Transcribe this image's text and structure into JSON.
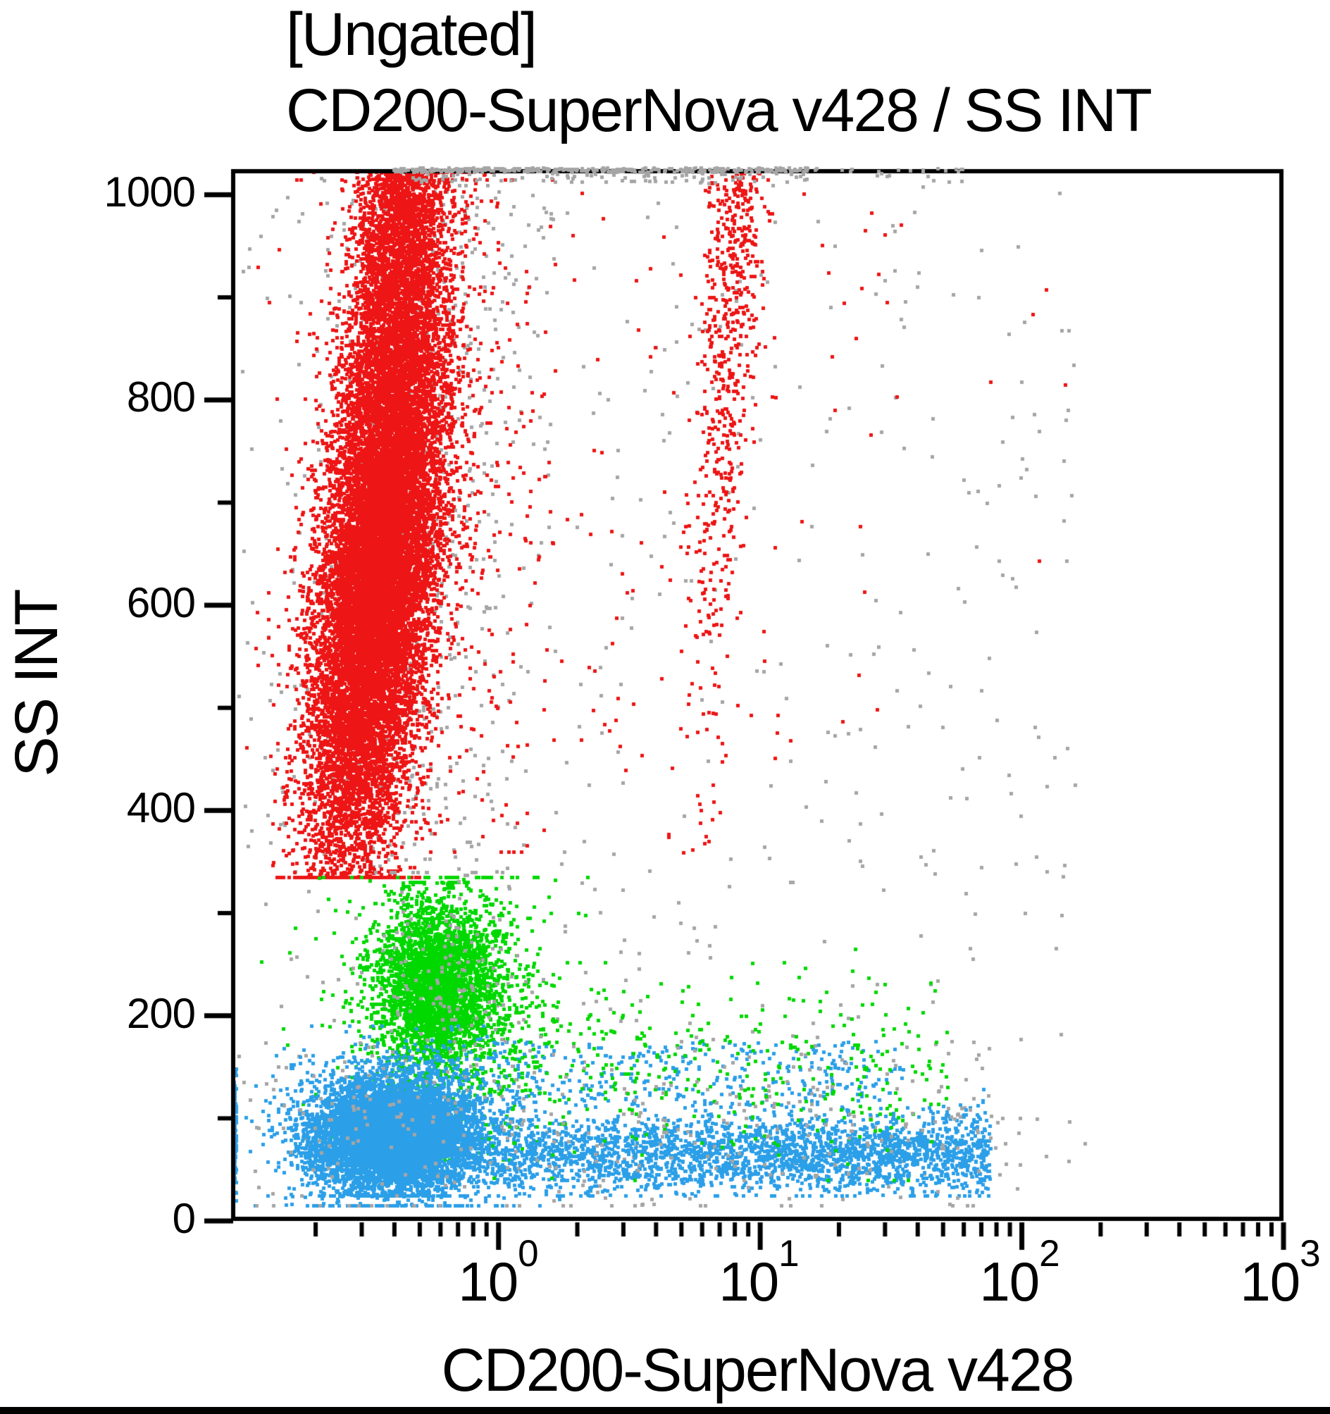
{
  "chart_data": {
    "type": "scatter",
    "plot_kind": "flow-cytometry-dot-plot",
    "gate": "[Ungated]",
    "title": "CD200-SuperNova v428 / SS INT",
    "xlabel": "CD200-SuperNova v428",
    "ylabel": "SS INT",
    "grid": false,
    "legend": "none",
    "x_axis": {
      "scale": "log10",
      "min": 0.095,
      "max": 1000,
      "decade_labels": [
        {
          "base": "10",
          "exp": "0",
          "value": 1
        },
        {
          "base": "10",
          "exp": "1",
          "value": 10
        },
        {
          "base": "10",
          "exp": "2",
          "value": 100
        },
        {
          "base": "10",
          "exp": "3",
          "value": 1000
        }
      ],
      "minor_ticks": "2-9 of each decade"
    },
    "y_axis": {
      "scale": "linear",
      "min": 0,
      "max": 1025,
      "tick_labels": [
        "1000",
        "800",
        "600",
        "400",
        "200",
        "0"
      ],
      "major_tick_values": [
        0,
        200,
        400,
        600,
        800,
        1000
      ],
      "minor_tick_step": 100
    },
    "colors": {
      "granulocytes": "#ED1515",
      "monocytes": "#00D800",
      "lymphocytes": "#2B9FE8",
      "debris_aggregates": "#A5A5A5",
      "axis": "#000000"
    },
    "populations": [
      {
        "name": "debris-column-above-granulocytes",
        "color": "#A5A5A5",
        "count": 620,
        "x": {
          "dist": "lognormal",
          "mean": -0.33,
          "sd": 0.22,
          "drift": 0.0002,
          "ref": 700
        },
        "y": {
          "dist": "uniform",
          "min": 340,
          "max": 1018
        }
      },
      {
        "name": "debris-wide-scatter",
        "color": "#A5A5A5",
        "count": 520,
        "x": {
          "dist": "loguniform",
          "min": -1.0,
          "max": 2.25
        },
        "y": {
          "dist": "uniform",
          "min": 40,
          "max": 1015
        }
      },
      {
        "name": "granulocytes-main",
        "color": "#ED1515",
        "count": 15000,
        "x": {
          "dist": "lognormal",
          "mean": -0.46,
          "sd": 0.11,
          "drift": 0.0004,
          "ref": 640
        },
        "y": {
          "dist": "normal",
          "mean": 640,
          "sd": 150,
          "clamp": [
            335,
            1022
          ]
        }
      },
      {
        "name": "granulocytes-top-pileup",
        "color": "#ED1515",
        "count": 2600,
        "x": {
          "dist": "lognormal",
          "mean": -0.4,
          "sd": 0.085,
          "drift": 0.0003,
          "ref": 900
        },
        "y": {
          "dist": "topfold",
          "max": 1022,
          "sd": 150,
          "clampMin": 600
        }
      },
      {
        "name": "granulocytes-fringe",
        "color": "#ED1515",
        "count": 550,
        "x": {
          "dist": "lognormal",
          "mean": -0.25,
          "sd": 0.3
        },
        "y": {
          "dist": "normal",
          "mean": 700,
          "sd": 180,
          "clamp": [
            360,
            1015
          ]
        }
      },
      {
        "name": "cd200-positive-streak",
        "color": "#ED1515",
        "count": 620,
        "x": {
          "dist": "lognormal",
          "mean": 0.875,
          "sd": 0.055,
          "drift": 0.00025,
          "ref": 850
        },
        "y": {
          "dist": "topfold",
          "max": 1022,
          "sd": 240,
          "clampMin": 355
        }
      },
      {
        "name": "red-sparse-right",
        "color": "#ED1515",
        "count": 70,
        "x": {
          "dist": "loguniform",
          "min": 0.3,
          "max": 1.55
        },
        "y": {
          "dist": "uniform",
          "min": 430,
          "max": 1010
        }
      },
      {
        "name": "red-far-right-singles",
        "color": "#ED1515",
        "count": 5,
        "x": {
          "dist": "loguniform",
          "min": 1.6,
          "max": 2.25
        },
        "y": {
          "dist": "uniform",
          "min": 380,
          "max": 1010
        }
      },
      {
        "name": "monocytes-main",
        "color": "#00D800",
        "count": 3000,
        "x": {
          "dist": "lognormal",
          "mean": -0.235,
          "sd": 0.115
        },
        "y": {
          "dist": "normal",
          "mean": 228,
          "sd": 42,
          "clamp": [
            90,
            330
          ]
        }
      },
      {
        "name": "monocytes-halo",
        "color": "#00D800",
        "count": 700,
        "x": {
          "dist": "lognormal",
          "mean": -0.2,
          "sd": 0.22
        },
        "y": {
          "dist": "normal",
          "mean": 215,
          "sd": 70,
          "clamp": [
            60,
            335
          ]
        }
      },
      {
        "name": "lymphocytes-main",
        "color": "#2B9FE8",
        "count": 6500,
        "x": {
          "dist": "lognormal",
          "mean": -0.4,
          "sd": 0.155
        },
        "y": {
          "dist": "normal",
          "mean": 83,
          "sd": 26,
          "clamp": [
            25,
            160
          ]
        }
      },
      {
        "name": "lymphocytes-halo",
        "color": "#2B9FE8",
        "count": 1500,
        "x": {
          "dist": "lognormal",
          "mean": -0.38,
          "sd": 0.22
        },
        "y": {
          "dist": "normal",
          "mean": 85,
          "sd": 40,
          "clamp": [
            15,
            190
          ]
        }
      },
      {
        "name": "lymphocytes-cd200-tail",
        "color": "#2B9FE8",
        "count": 2600,
        "x": {
          "dist": "loguniform",
          "min": -0.05,
          "max": 1.88,
          "pow": 0.85
        },
        "y": {
          "dist": "normal",
          "mean": 66,
          "sd": 19,
          "clamp": [
            25,
            130
          ]
        }
      },
      {
        "name": "lymphocytes-upper-sparse",
        "color": "#2B9FE8",
        "count": 420,
        "x": {
          "dist": "loguniform",
          "min": -0.55,
          "max": 1.55
        },
        "y": {
          "dist": "uniform",
          "min": 110,
          "max": 175
        }
      },
      {
        "name": "lymphocytes-pinned-left",
        "color": "#2B9FE8",
        "count": 240,
        "x": {
          "dist": "minpin"
        },
        "y": {
          "dist": "normal",
          "mean": 85,
          "sd": 32,
          "clamp": [
            20,
            170
          ]
        }
      },
      {
        "name": "monocytes-cd200-tail",
        "color": "#00D800",
        "count": 380,
        "x": {
          "dist": "loguniform",
          "min": -0.05,
          "max": 1.72
        },
        "y": {
          "dist": "normal",
          "mean": 150,
          "sd": 45,
          "clamp": [
            40,
            280
          ]
        }
      },
      {
        "name": "debris-in-monocyte-region",
        "color": "#A5A5A5",
        "count": 140,
        "x": {
          "dist": "lognormal",
          "mean": -0.22,
          "sd": 0.16
        },
        "y": {
          "dist": "normal",
          "mean": 235,
          "sd": 60,
          "clamp": [
            30,
            340
          ]
        }
      },
      {
        "name": "debris-low-band",
        "color": "#A5A5A5",
        "count": 330,
        "x": {
          "dist": "loguniform",
          "min": -0.95,
          "max": 2.0
        },
        "y": {
          "dist": "normal",
          "mean": 95,
          "sd": 55,
          "clamp": [
            15,
            300
          ]
        }
      },
      {
        "name": "aggregates-saturated-top-row",
        "color": "#A5A5A5",
        "count": 430,
        "x": {
          "dist": "loguniform",
          "min": -0.4,
          "max": 1.18
        },
        "y": {
          "dist": "topborder"
        }
      },
      {
        "name": "aggregates-top-specks",
        "color": "#A5A5A5",
        "count": 22,
        "x": {
          "dist": "loguniform",
          "min": 1.18,
          "max": 1.8
        },
        "y": {
          "dist": "topborder"
        }
      }
    ]
  }
}
